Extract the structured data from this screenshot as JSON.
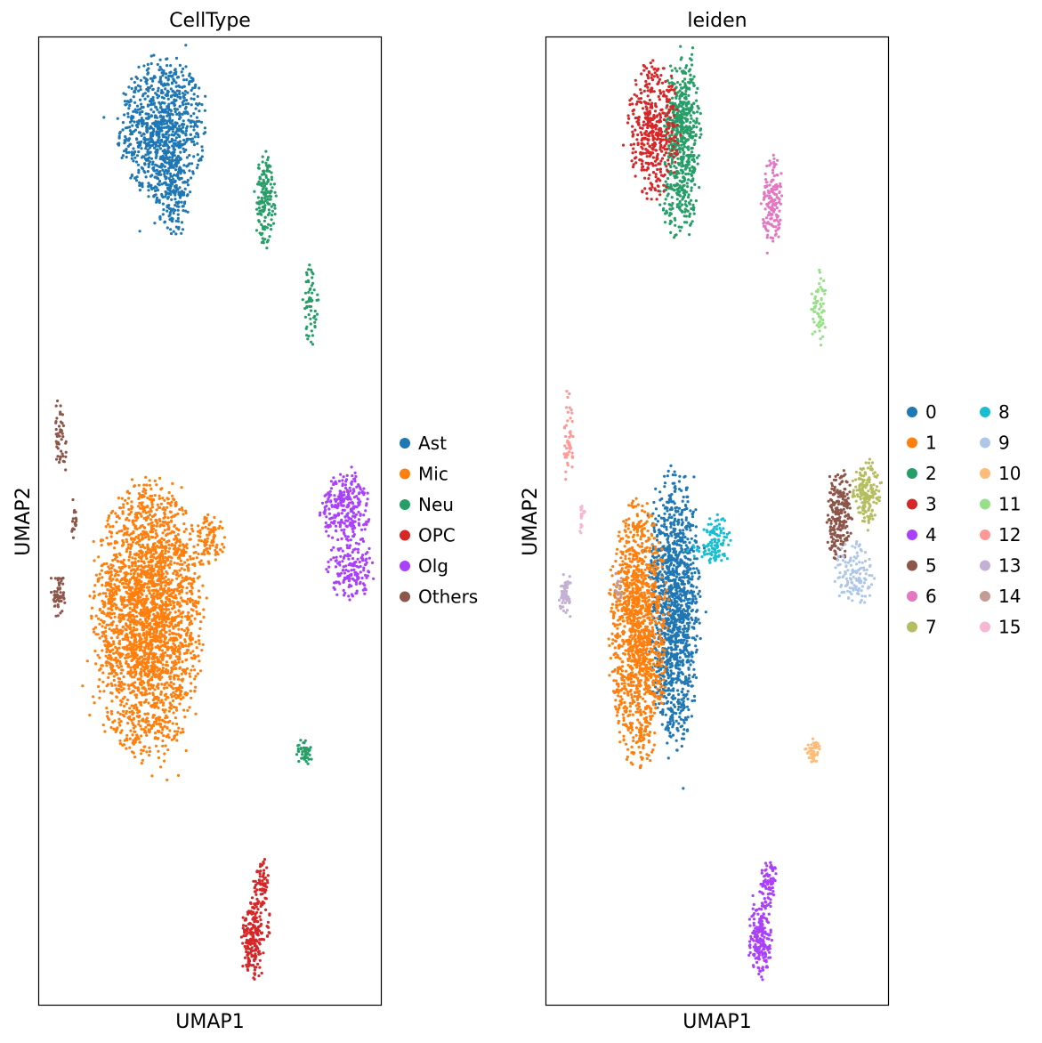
{
  "chart_data": [
    {
      "type": "scatter",
      "title": "CellType",
      "xlabel": "UMAP1",
      "ylabel": "UMAP2",
      "xlim": [
        0,
        1
      ],
      "ylim": [
        0,
        1
      ],
      "ticks": "hidden",
      "grid": false,
      "legend": {
        "placement": "right",
        "columns": 1,
        "entries": [
          {
            "label": "Ast",
            "color": "#1f77b4"
          },
          {
            "label": "Mic",
            "color": "#ff7f0e"
          },
          {
            "label": "Neu",
            "color": "#279e68"
          },
          {
            "label": "OPC",
            "color": "#d62728"
          },
          {
            "label": "Olg",
            "color": "#aa40fc"
          },
          {
            "label": "Others",
            "color": "#8c564b"
          }
        ]
      },
      "clusters": [
        {
          "label": "Ast",
          "blobs": [
            [
              0.36,
              0.905,
              0.075,
              0.045,
              900
            ],
            [
              0.39,
              0.84,
              0.035,
              0.03,
              180
            ]
          ]
        },
        {
          "label": "Mic",
          "blobs": [
            [
              0.32,
              0.4,
              0.095,
              0.085,
              2600
            ],
            [
              0.5,
              0.48,
              0.025,
              0.016,
              90
            ],
            [
              0.41,
              0.47,
              0.05,
              0.006,
              25
            ],
            [
              0.21,
              0.43,
              0.008,
              0.01,
              20
            ]
          ]
        },
        {
          "label": "Neu",
          "blobs": [
            [
              0.66,
              0.83,
              0.018,
              0.03,
              150
            ],
            [
              0.795,
              0.725,
              0.014,
              0.026,
              60
            ],
            [
              0.775,
              0.262,
              0.015,
              0.008,
              45
            ]
          ]
        },
        {
          "label": "OPC",
          "blobs": [
            [
              0.625,
              0.068,
              0.02,
              0.025,
              200
            ],
            [
              0.65,
              0.125,
              0.014,
              0.016,
              70
            ],
            [
              0.67,
              0.082,
              0.005,
              0.01,
              10
            ]
          ]
        },
        {
          "label": "Olg",
          "blobs": [
            [
              0.895,
              0.515,
              0.045,
              0.022,
              260
            ],
            [
              0.91,
              0.45,
              0.04,
              0.02,
              160
            ]
          ]
        },
        {
          "label": "Others",
          "blobs": [
            [
              0.065,
              0.585,
              0.01,
              0.03,
              50
            ],
            [
              0.105,
              0.505,
              0.006,
              0.014,
              18
            ],
            [
              0.058,
              0.424,
              0.012,
              0.014,
              60
            ]
          ]
        }
      ]
    },
    {
      "type": "scatter",
      "title": "leiden",
      "xlabel": "UMAP1",
      "ylabel": "UMAP2",
      "xlim": [
        0,
        1
      ],
      "ylim": [
        0,
        1
      ],
      "ticks": "hidden",
      "grid": false,
      "legend": {
        "placement": "right",
        "columns": 2,
        "entries": [
          {
            "label": "0",
            "color": "#1f77b4"
          },
          {
            "label": "1",
            "color": "#ff7f0e"
          },
          {
            "label": "2",
            "color": "#279e68"
          },
          {
            "label": "3",
            "color": "#d62728"
          },
          {
            "label": "4",
            "color": "#aa40fc"
          },
          {
            "label": "5",
            "color": "#8c564b"
          },
          {
            "label": "6",
            "color": "#e377c2"
          },
          {
            "label": "7",
            "color": "#b5bd61"
          },
          {
            "label": "8",
            "color": "#17becf"
          },
          {
            "label": "9",
            "color": "#aec7e8"
          },
          {
            "label": "10",
            "color": "#ffbb78"
          },
          {
            "label": "11",
            "color": "#98df8a"
          },
          {
            "label": "12",
            "color": "#ff9896"
          },
          {
            "label": "13",
            "color": "#c5b0d5"
          },
          {
            "label": "14",
            "color": "#c49c94"
          },
          {
            "label": "15",
            "color": "#f7b6d2"
          }
        ]
      },
      "clusters": [
        {
          "label": "0",
          "blobs": [
            [
              0.375,
              0.41,
              0.045,
              0.085,
              1300
            ]
          ]
        },
        {
          "label": "1",
          "blobs": [
            [
              0.27,
              0.385,
              0.05,
              0.08,
              1300
            ]
          ]
        },
        {
          "label": "2",
          "blobs": [
            [
              0.4,
              0.91,
              0.032,
              0.042,
              450
            ],
            [
              0.39,
              0.84,
              0.035,
              0.03,
              180
            ]
          ]
        },
        {
          "label": "3",
          "blobs": [
            [
              0.315,
              0.905,
              0.045,
              0.042,
              450
            ]
          ]
        },
        {
          "label": "4",
          "blobs": [
            [
              0.625,
              0.068,
              0.02,
              0.025,
              200
            ],
            [
              0.65,
              0.125,
              0.014,
              0.016,
              70
            ]
          ]
        },
        {
          "label": "5",
          "blobs": [
            [
              0.855,
              0.505,
              0.022,
              0.03,
              220
            ]
          ]
        },
        {
          "label": "6",
          "blobs": [
            [
              0.66,
              0.83,
              0.018,
              0.03,
              150
            ]
          ]
        },
        {
          "label": "7",
          "blobs": [
            [
              0.935,
              0.53,
              0.025,
              0.02,
              170
            ]
          ]
        },
        {
          "label": "8",
          "blobs": [
            [
              0.5,
              0.48,
              0.025,
              0.016,
              90
            ],
            [
              0.45,
              0.47,
              0.03,
              0.005,
              15
            ]
          ]
        },
        {
          "label": "9",
          "blobs": [
            [
              0.9,
              0.445,
              0.035,
              0.02,
              130
            ]
          ]
        },
        {
          "label": "10",
          "blobs": [
            [
              0.775,
              0.262,
              0.015,
              0.008,
              45
            ]
          ]
        },
        {
          "label": "11",
          "blobs": [
            [
              0.795,
              0.725,
              0.014,
              0.026,
              60
            ]
          ]
        },
        {
          "label": "12",
          "blobs": [
            [
              0.065,
              0.585,
              0.01,
              0.03,
              50
            ]
          ]
        },
        {
          "label": "13",
          "blobs": [
            [
              0.058,
              0.424,
              0.012,
              0.014,
              60
            ]
          ]
        },
        {
          "label": "14",
          "blobs": [
            [
              0.21,
              0.43,
              0.008,
              0.01,
              20
            ]
          ]
        },
        {
          "label": "15",
          "blobs": [
            [
              0.105,
              0.505,
              0.006,
              0.014,
              18
            ]
          ]
        }
      ]
    }
  ]
}
